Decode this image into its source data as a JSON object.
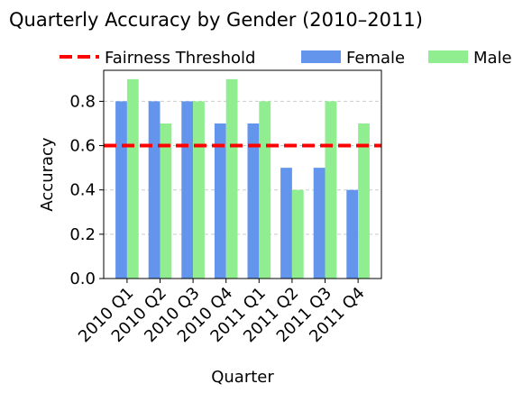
{
  "chart_data": {
    "type": "bar",
    "title": "Quarterly Accuracy by Gender (2010–2011)",
    "xlabel": "Quarter",
    "ylabel": "Accuracy",
    "categories": [
      "2010 Q1",
      "2010 Q2",
      "2010 Q3",
      "2010 Q4",
      "2011 Q1",
      "2011 Q2",
      "2011 Q3",
      "2011 Q4"
    ],
    "series": [
      {
        "name": "Female",
        "color": "#6495ED",
        "values": [
          0.8,
          0.8,
          0.8,
          0.7,
          0.7,
          0.5,
          0.5,
          0.4
        ]
      },
      {
        "name": "Male",
        "color": "#90EE90",
        "values": [
          0.9,
          0.7,
          0.8,
          0.9,
          0.8,
          0.4,
          0.8,
          0.7
        ]
      }
    ],
    "reference_line": {
      "name": "Fairness Threshold",
      "value": 0.6,
      "color": "#FF0000",
      "style": "dashed"
    },
    "ylim": [
      0,
      0.94
    ],
    "yticks": [
      0.0,
      0.2,
      0.4,
      0.6,
      0.8
    ],
    "ytick_labels": [
      "0.0",
      "0.2",
      "0.4",
      "0.6",
      "0.8"
    ],
    "grid": "y-dashed",
    "legend_placement": "top, above plot"
  }
}
